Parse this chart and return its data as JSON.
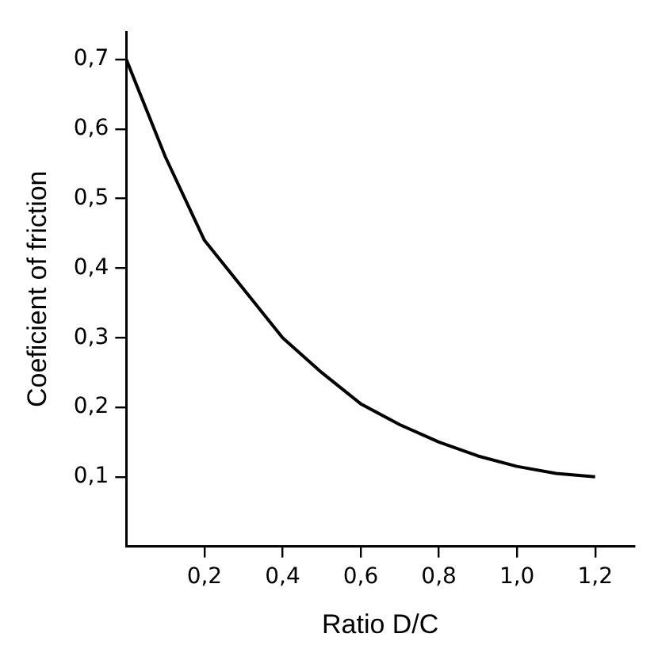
{
  "chart_data": {
    "type": "line",
    "xlabel": "Ratio D/C",
    "ylabel": "Coeficient of friction",
    "x": [
      0,
      0.1,
      0.2,
      0.3,
      0.4,
      0.5,
      0.6,
      0.7,
      0.8,
      0.9,
      1.0,
      1.1,
      1.2
    ],
    "series": [
      {
        "color": "#000000",
        "values": [
          0.7,
          0.56,
          0.44,
          0.37,
          0.3,
          0.25,
          0.205,
          0.175,
          0.15,
          0.13,
          0.115,
          0.105,
          0.1
        ]
      }
    ],
    "xlim": [
      0,
      1.3
    ],
    "ylim": [
      0,
      0.74
    ],
    "xticks": [
      {
        "value": 0.2,
        "label": "0,2"
      },
      {
        "value": 0.4,
        "label": "0,4"
      },
      {
        "value": 0.6,
        "label": "0,6"
      },
      {
        "value": 0.8,
        "label": "0,8"
      },
      {
        "value": 1.0,
        "label": "1,0"
      },
      {
        "value": 1.2,
        "label": "1,2"
      }
    ],
    "yticks": [
      {
        "value": 0.1,
        "label": "0,1"
      },
      {
        "value": 0.2,
        "label": "0,2"
      },
      {
        "value": 0.3,
        "label": "0,3"
      },
      {
        "value": 0.4,
        "label": "0,4"
      },
      {
        "value": 0.5,
        "label": "0,5"
      },
      {
        "value": 0.6,
        "label": "0,6"
      },
      {
        "value": 0.7,
        "label": "0,7"
      }
    ],
    "grid": false,
    "legend": false,
    "marker": "none",
    "line_style": "solid"
  }
}
